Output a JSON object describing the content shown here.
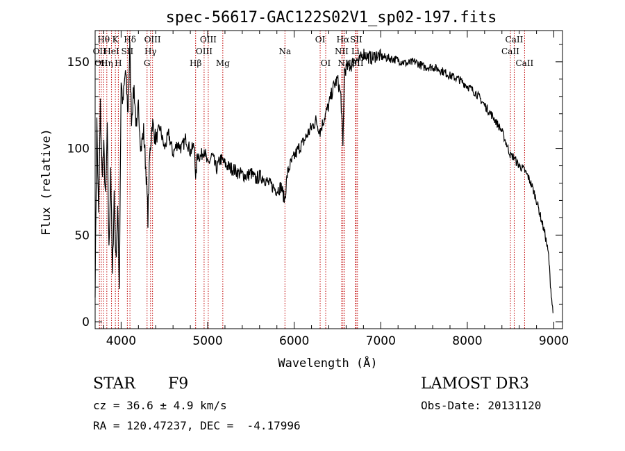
{
  "chart_data": {
    "type": "line",
    "title": "spec-56617-GAC122S02V1_sp02-197.fits",
    "xlabel": "Wavelength (Å)",
    "ylabel": "Flux (relative)",
    "xlim": [
      3700,
      9100
    ],
    "ylim": [
      -4,
      168
    ],
    "xticks": [
      4000,
      5000,
      6000,
      7000,
      8000,
      9000
    ],
    "yticks": [
      0,
      50,
      100,
      150
    ],
    "grid": false,
    "series": [
      {
        "x": [
          3700,
          3720,
          3740,
          3760,
          3780,
          3800,
          3820,
          3840,
          3860,
          3880,
          3900,
          3920,
          3940,
          3960,
          3980,
          4000,
          4020,
          4050,
          4080,
          4100,
          4120,
          4150,
          4180,
          4200,
          4230,
          4260,
          4290,
          4310,
          4330,
          4360,
          4400,
          4450,
          4500,
          4550,
          4600,
          4650,
          4700,
          4750,
          4800,
          4850,
          4861,
          4880,
          4920,
          4960,
          5000,
          5050,
          5100,
          5150,
          5200,
          5250,
          5300,
          5350,
          5400,
          5450,
          5500,
          5550,
          5600,
          5650,
          5700,
          5750,
          5800,
          5850,
          5890,
          5920,
          5950,
          6000,
          6050,
          6100,
          6150,
          6200,
          6250,
          6300,
          6350,
          6400,
          6450,
          6500,
          6540,
          6563,
          6580,
          6620,
          6660,
          6700,
          6750,
          6800,
          6850,
          6900,
          6950,
          7000,
          7100,
          7200,
          7300,
          7400,
          7500,
          7600,
          7700,
          7800,
          7900,
          8000,
          8100,
          8200,
          8300,
          8400,
          8450,
          8500,
          8540,
          8570,
          8600,
          8650,
          8700,
          8750,
          8800,
          8850,
          8900,
          8940,
          8960,
          8990
        ],
        "y": [
          20,
          115,
          60,
          125,
          85,
          100,
          70,
          110,
          40,
          90,
          25,
          75,
          35,
          65,
          20,
          140,
          125,
          145,
          120,
          158,
          118,
          135,
          108,
          125,
          100,
          110,
          85,
          60,
          95,
          115,
          105,
          112,
          100,
          108,
          97,
          103,
          100,
          106,
          98,
          102,
          80,
          97,
          95,
          100,
          90,
          96,
          88,
          94,
          91,
          89,
          88,
          86,
          85,
          84,
          86,
          82,
          84,
          83,
          80,
          78,
          76,
          78,
          70,
          85,
          90,
          95,
          100,
          103,
          108,
          112,
          116,
          110,
          118,
          125,
          135,
          140,
          130,
          100,
          145,
          147,
          148,
          152,
          150,
          155,
          153,
          152,
          154,
          153,
          152,
          151,
          149,
          150,
          147,
          147,
          145,
          142,
          140,
          136,
          132,
          125,
          118,
          110,
          103,
          96,
          95,
          92,
          90,
          88,
          84,
          78,
          70,
          60,
          50,
          38,
          22,
          5
        ]
      }
    ],
    "line_markers": [
      {
        "x": 3750,
        "label": "OII",
        "row": 1
      },
      {
        "x": 3771,
        "label": "OII",
        "row": 2
      },
      {
        "x": 3798,
        "label": "Hθ",
        "row": 0
      },
      {
        "x": 3835,
        "label": "Hη",
        "row": 2
      },
      {
        "x": 3889,
        "label": "HeI",
        "row": 1
      },
      {
        "x": 3934,
        "label": "K",
        "row": 0
      },
      {
        "x": 3968,
        "label": "H",
        "row": 2
      },
      {
        "x": 4072,
        "label": "SII",
        "row": 1
      },
      {
        "x": 4102,
        "label": "Hδ",
        "row": 0
      },
      {
        "x": 4300,
        "label": "G",
        "row": 2
      },
      {
        "x": 4340,
        "label": "Hγ",
        "row": 1
      },
      {
        "x": 4363,
        "label": "OIII",
        "row": 0
      },
      {
        "x": 4861,
        "label": "Hβ",
        "row": 2
      },
      {
        "x": 4959,
        "label": "OIII",
        "row": 1
      },
      {
        "x": 5007,
        "label": "OIII",
        "row": 0
      },
      {
        "x": 5175,
        "label": "Mg",
        "row": 2
      },
      {
        "x": 5893,
        "label": "Na",
        "row": 1
      },
      {
        "x": 6300,
        "label": "OI",
        "row": 0
      },
      {
        "x": 6364,
        "label": "OI",
        "row": 2
      },
      {
        "x": 6548,
        "label": "NII",
        "row": 1
      },
      {
        "x": 6563,
        "label": "Hα",
        "row": 0
      },
      {
        "x": 6583,
        "label": "NII",
        "row": 2
      },
      {
        "x": 6707,
        "label": "Li",
        "row": 1
      },
      {
        "x": 6716,
        "label": "SII",
        "row": 0
      },
      {
        "x": 6731,
        "label": "SII",
        "row": 2
      },
      {
        "x": 8498,
        "label": "CaII",
        "row": 1
      },
      {
        "x": 8542,
        "label": "CaII",
        "row": 0
      },
      {
        "x": 8662,
        "label": "CaII",
        "row": 2
      }
    ]
  },
  "footer": {
    "object_type": "STAR",
    "subclass": "F9",
    "survey": "LAMOST DR3",
    "redshift": "cz = 36.6 ± 4.9 km/s",
    "obs_date": "Obs-Date: 20131120",
    "coords": "RA = 120.47237, DEC =  -4.17996"
  },
  "colors": {
    "spectrum": "#000000",
    "line_marker": "#c00000",
    "background": "#ffffff"
  }
}
